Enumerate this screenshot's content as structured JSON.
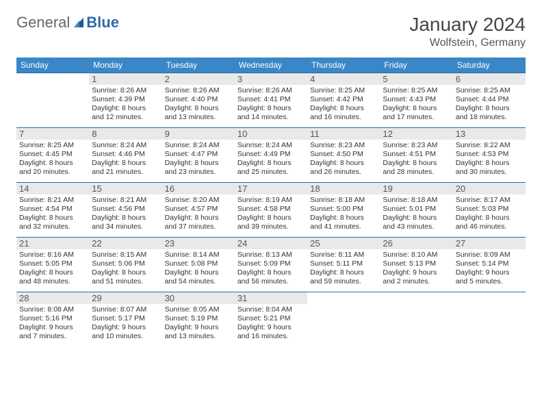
{
  "brand": {
    "part1": "General",
    "part2": "Blue"
  },
  "title": "January 2024",
  "location": "Wolfstein, Germany",
  "colors": {
    "header_bg": "#3a87c7",
    "header_text": "#ffffff",
    "row_border": "#2f6aa8",
    "daynum_bg": "#e9e9e9",
    "body_text": "#333333",
    "page_bg": "#ffffff"
  },
  "typography": {
    "title_fontsize": 28,
    "location_fontsize": 16,
    "header_fontsize": 12,
    "daynum_fontsize": 13,
    "cell_fontsize": 10.5
  },
  "weekdays": [
    "Sunday",
    "Monday",
    "Tuesday",
    "Wednesday",
    "Thursday",
    "Friday",
    "Saturday"
  ],
  "first_weekday_index": 1,
  "days": [
    {
      "n": 1,
      "sunrise": "8:26 AM",
      "sunset": "4:39 PM",
      "daylight": "8 hours and 12 minutes."
    },
    {
      "n": 2,
      "sunrise": "8:26 AM",
      "sunset": "4:40 PM",
      "daylight": "8 hours and 13 minutes."
    },
    {
      "n": 3,
      "sunrise": "8:26 AM",
      "sunset": "4:41 PM",
      "daylight": "8 hours and 14 minutes."
    },
    {
      "n": 4,
      "sunrise": "8:25 AM",
      "sunset": "4:42 PM",
      "daylight": "8 hours and 16 minutes."
    },
    {
      "n": 5,
      "sunrise": "8:25 AM",
      "sunset": "4:43 PM",
      "daylight": "8 hours and 17 minutes."
    },
    {
      "n": 6,
      "sunrise": "8:25 AM",
      "sunset": "4:44 PM",
      "daylight": "8 hours and 18 minutes."
    },
    {
      "n": 7,
      "sunrise": "8:25 AM",
      "sunset": "4:45 PM",
      "daylight": "8 hours and 20 minutes."
    },
    {
      "n": 8,
      "sunrise": "8:24 AM",
      "sunset": "4:46 PM",
      "daylight": "8 hours and 21 minutes."
    },
    {
      "n": 9,
      "sunrise": "8:24 AM",
      "sunset": "4:47 PM",
      "daylight": "8 hours and 23 minutes."
    },
    {
      "n": 10,
      "sunrise": "8:24 AM",
      "sunset": "4:49 PM",
      "daylight": "8 hours and 25 minutes."
    },
    {
      "n": 11,
      "sunrise": "8:23 AM",
      "sunset": "4:50 PM",
      "daylight": "8 hours and 26 minutes."
    },
    {
      "n": 12,
      "sunrise": "8:23 AM",
      "sunset": "4:51 PM",
      "daylight": "8 hours and 28 minutes."
    },
    {
      "n": 13,
      "sunrise": "8:22 AM",
      "sunset": "4:53 PM",
      "daylight": "8 hours and 30 minutes."
    },
    {
      "n": 14,
      "sunrise": "8:21 AM",
      "sunset": "4:54 PM",
      "daylight": "8 hours and 32 minutes."
    },
    {
      "n": 15,
      "sunrise": "8:21 AM",
      "sunset": "4:56 PM",
      "daylight": "8 hours and 34 minutes."
    },
    {
      "n": 16,
      "sunrise": "8:20 AM",
      "sunset": "4:57 PM",
      "daylight": "8 hours and 37 minutes."
    },
    {
      "n": 17,
      "sunrise": "8:19 AM",
      "sunset": "4:58 PM",
      "daylight": "8 hours and 39 minutes."
    },
    {
      "n": 18,
      "sunrise": "8:18 AM",
      "sunset": "5:00 PM",
      "daylight": "8 hours and 41 minutes."
    },
    {
      "n": 19,
      "sunrise": "8:18 AM",
      "sunset": "5:01 PM",
      "daylight": "8 hours and 43 minutes."
    },
    {
      "n": 20,
      "sunrise": "8:17 AM",
      "sunset": "5:03 PM",
      "daylight": "8 hours and 46 minutes."
    },
    {
      "n": 21,
      "sunrise": "8:16 AM",
      "sunset": "5:05 PM",
      "daylight": "8 hours and 48 minutes."
    },
    {
      "n": 22,
      "sunrise": "8:15 AM",
      "sunset": "5:06 PM",
      "daylight": "8 hours and 51 minutes."
    },
    {
      "n": 23,
      "sunrise": "8:14 AM",
      "sunset": "5:08 PM",
      "daylight": "8 hours and 54 minutes."
    },
    {
      "n": 24,
      "sunrise": "8:13 AM",
      "sunset": "5:09 PM",
      "daylight": "8 hours and 56 minutes."
    },
    {
      "n": 25,
      "sunrise": "8:11 AM",
      "sunset": "5:11 PM",
      "daylight": "8 hours and 59 minutes."
    },
    {
      "n": 26,
      "sunrise": "8:10 AM",
      "sunset": "5:13 PM",
      "daylight": "9 hours and 2 minutes."
    },
    {
      "n": 27,
      "sunrise": "8:09 AM",
      "sunset": "5:14 PM",
      "daylight": "9 hours and 5 minutes."
    },
    {
      "n": 28,
      "sunrise": "8:08 AM",
      "sunset": "5:16 PM",
      "daylight": "9 hours and 7 minutes."
    },
    {
      "n": 29,
      "sunrise": "8:07 AM",
      "sunset": "5:17 PM",
      "daylight": "9 hours and 10 minutes."
    },
    {
      "n": 30,
      "sunrise": "8:05 AM",
      "sunset": "5:19 PM",
      "daylight": "9 hours and 13 minutes."
    },
    {
      "n": 31,
      "sunrise": "8:04 AM",
      "sunset": "5:21 PM",
      "daylight": "9 hours and 16 minutes."
    }
  ],
  "labels": {
    "sunrise": "Sunrise:",
    "sunset": "Sunset:",
    "daylight": "Daylight:"
  }
}
